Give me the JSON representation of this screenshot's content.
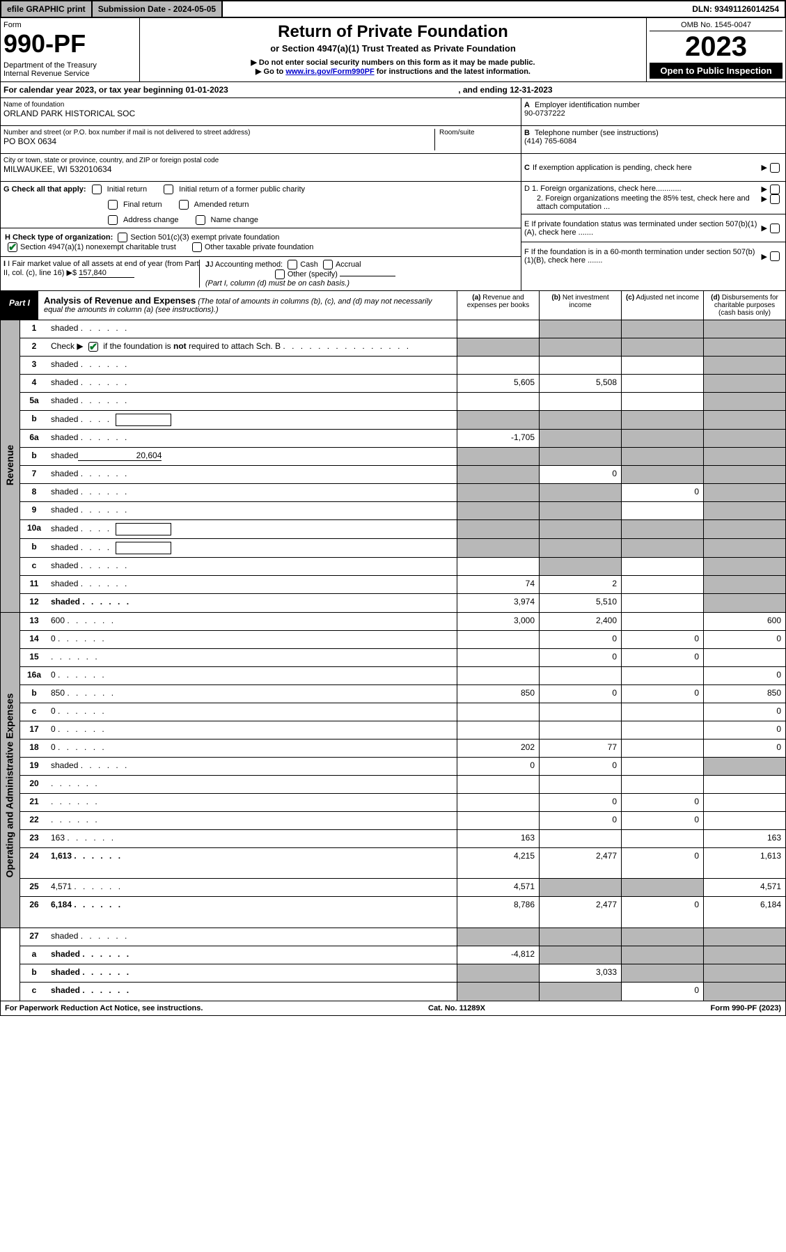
{
  "top": {
    "efile": "efile GRAPHIC print",
    "submission_label": "Submission Date - 2024-05-05",
    "dln": "DLN: 93491126014254"
  },
  "header": {
    "form_label": "Form",
    "form_number": "990-PF",
    "dept": "Department of the Treasury\nInternal Revenue Service",
    "title": "Return of Private Foundation",
    "subtitle": "or Section 4947(a)(1) Trust Treated as Private Foundation",
    "note1": "▶ Do not enter social security numbers on this form as it may be made public.",
    "note2_pre": "▶ Go to ",
    "note2_link": "www.irs.gov/Form990PF",
    "note2_post": " for instructions and the latest information.",
    "omb": "OMB No. 1545-0047",
    "tax_year": "2023",
    "open_public": "Open to Public Inspection"
  },
  "calendar": {
    "text1": "For calendar year 2023, or tax year beginning 01-01-2023",
    "text2": ", and ending 12-31-2023"
  },
  "entity": {
    "name_label": "Name of foundation",
    "name": "ORLAND PARK HISTORICAL SOC",
    "addr_label": "Number and street (or P.O. box number if mail is not delivered to street address)",
    "addr": "PO BOX 0634",
    "room_label": "Room/suite",
    "city_label": "City or town, state or province, country, and ZIP or foreign postal code",
    "city": "MILWAUKEE, WI  532010634",
    "ein_label": "A Employer identification number",
    "ein": "90-0737222",
    "phone_label": "B Telephone number (see instructions)",
    "phone": "(414) 765-6084",
    "c_label": "C If exemption application is pending, check here",
    "d1_label": "D 1. Foreign organizations, check here............",
    "d2_label": "2. Foreign organizations meeting the 85% test, check here and attach computation ...",
    "e_label": "E  If private foundation status was terminated under section 507(b)(1)(A), check here .......",
    "f_label": "F  If the foundation is in a 60-month termination under section 507(b)(1)(B), check here ......."
  },
  "g": {
    "label": "G Check all that apply:",
    "opts": [
      "Initial return",
      "Initial return of a former public charity",
      "Final return",
      "Amended return",
      "Address change",
      "Name change"
    ]
  },
  "h": {
    "label": "H Check type of organization:",
    "opt1": "Section 501(c)(3) exempt private foundation",
    "opt2": "Section 4947(a)(1) nonexempt charitable trust",
    "opt3": "Other taxable private foundation"
  },
  "i": {
    "label": "I Fair market value of all assets at end of year (from Part II, col. (c), line 16)",
    "value": "157,840"
  },
  "j": {
    "label": "J Accounting method:",
    "cash": "Cash",
    "accrual": "Accrual",
    "other": "Other (specify)",
    "note": "(Part I, column (d) must be on cash basis.)"
  },
  "part1": {
    "label": "Part I",
    "title": "Analysis of Revenue and Expenses",
    "desc": " (The total of amounts in columns (b), (c), and (d) may not necessarily equal the amounts in column (a) (see instructions).)",
    "col_a": "(a)  Revenue and expenses per books",
    "col_b": "(b)  Net investment income",
    "col_c": "(c)  Adjusted net income",
    "col_d": "(d)  Disbursements for charitable purposes (cash basis only)"
  },
  "side": {
    "revenue": "Revenue",
    "expenses": "Operating and Administrative Expenses"
  },
  "rows": [
    {
      "n": "1",
      "d": "shaded",
      "a": "",
      "b": "shaded",
      "c": "shaded"
    },
    {
      "n": "2",
      "d": "shaded",
      "a": "shaded",
      "b": "shaded",
      "c": "shaded",
      "desc_html": true
    },
    {
      "n": "3",
      "d": "shaded",
      "a": "",
      "b": "",
      "c": ""
    },
    {
      "n": "4",
      "d": "shaded",
      "a": "5,605",
      "b": "5,508",
      "c": ""
    },
    {
      "n": "5a",
      "d": "shaded",
      "a": "",
      "b": "",
      "c": ""
    },
    {
      "n": "b",
      "d": "shaded",
      "a": "shaded",
      "b": "shaded",
      "c": "shaded",
      "inline_box": true
    },
    {
      "n": "6a",
      "d": "shaded",
      "a": "-1,705",
      "b": "shaded",
      "c": "shaded"
    },
    {
      "n": "b",
      "d": "shaded",
      "a": "shaded",
      "b": "shaded",
      "c": "shaded",
      "inline_val": "20,604"
    },
    {
      "n": "7",
      "d": "shaded",
      "a": "shaded",
      "b": "0",
      "c": "shaded"
    },
    {
      "n": "8",
      "d": "shaded",
      "a": "shaded",
      "b": "shaded",
      "c": "0"
    },
    {
      "n": "9",
      "d": "shaded",
      "a": "shaded",
      "b": "shaded",
      "c": ""
    },
    {
      "n": "10a",
      "d": "shaded",
      "a": "shaded",
      "b": "shaded",
      "c": "shaded",
      "inline_box": true
    },
    {
      "n": "b",
      "d": "shaded",
      "a": "shaded",
      "b": "shaded",
      "c": "shaded",
      "inline_box": true
    },
    {
      "n": "c",
      "d": "shaded",
      "a": "",
      "b": "shaded",
      "c": ""
    },
    {
      "n": "11",
      "d": "shaded",
      "a": "74",
      "b": "2",
      "c": ""
    },
    {
      "n": "12",
      "d": "shaded",
      "a": "3,974",
      "b": "5,510",
      "c": "",
      "bold": true
    }
  ],
  "exp_rows": [
    {
      "n": "13",
      "d": "600",
      "a": "3,000",
      "b": "2,400",
      "c": ""
    },
    {
      "n": "14",
      "d": "0",
      "a": "",
      "b": "0",
      "c": "0"
    },
    {
      "n": "15",
      "d": "",
      "a": "",
      "b": "0",
      "c": "0"
    },
    {
      "n": "16a",
      "d": "0",
      "a": "",
      "b": "",
      "c": ""
    },
    {
      "n": "b",
      "d": "850",
      "a": "850",
      "b": "0",
      "c": "0"
    },
    {
      "n": "c",
      "d": "0",
      "a": "",
      "b": "",
      "c": ""
    },
    {
      "n": "17",
      "d": "0",
      "a": "",
      "b": "",
      "c": ""
    },
    {
      "n": "18",
      "d": "0",
      "a": "202",
      "b": "77",
      "c": ""
    },
    {
      "n": "19",
      "d": "shaded",
      "a": "0",
      "b": "0",
      "c": ""
    },
    {
      "n": "20",
      "d": "",
      "a": "",
      "b": "",
      "c": ""
    },
    {
      "n": "21",
      "d": "",
      "a": "",
      "b": "0",
      "c": "0"
    },
    {
      "n": "22",
      "d": "",
      "a": "",
      "b": "0",
      "c": "0"
    },
    {
      "n": "23",
      "d": "163",
      "a": "163",
      "b": "",
      "c": ""
    },
    {
      "n": "24",
      "d": "1,613",
      "a": "4,215",
      "b": "2,477",
      "c": "0",
      "bold": true,
      "tall": true
    },
    {
      "n": "25",
      "d": "4,571",
      "a": "4,571",
      "b": "shaded",
      "c": "shaded"
    },
    {
      "n": "26",
      "d": "6,184",
      "a": "8,786",
      "b": "2,477",
      "c": "0",
      "bold": true,
      "tall": true
    }
  ],
  "bottom_rows": [
    {
      "n": "27",
      "d": "shaded",
      "a": "shaded",
      "b": "shaded",
      "c": "shaded"
    },
    {
      "n": "a",
      "d": "shaded",
      "a": "-4,812",
      "b": "shaded",
      "c": "shaded",
      "bold": true
    },
    {
      "n": "b",
      "d": "shaded",
      "a": "shaded",
      "b": "3,033",
      "c": "shaded",
      "bold": true
    },
    {
      "n": "c",
      "d": "shaded",
      "a": "shaded",
      "b": "shaded",
      "c": "0",
      "bold": true
    }
  ],
  "footer": {
    "left": "For Paperwork Reduction Act Notice, see instructions.",
    "mid": "Cat. No. 11289X",
    "right": "Form 990-PF (2023)"
  },
  "colors": {
    "shaded": "#b8b8b8",
    "link": "#0000cc",
    "check": "#0a7a2a"
  }
}
